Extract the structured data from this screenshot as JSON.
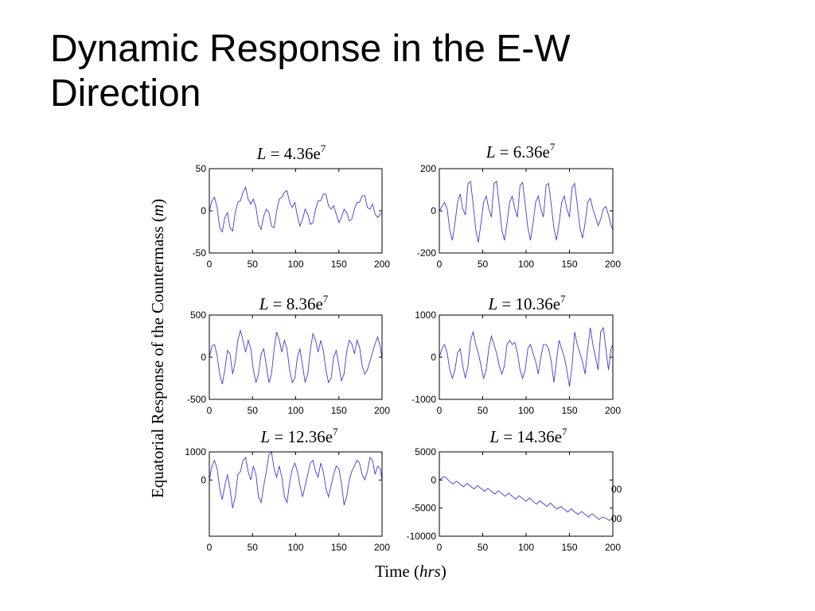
{
  "slide": {
    "title": "Dynamic Response in the E-W\nDirection"
  },
  "figure": {
    "ylabel_plain": "Equatorial  Response of the Countermass (",
    "ylabel_italic": "m",
    "ylabel_close": ")",
    "xlabel_plain": "Time (",
    "xlabel_italic": "hrs",
    "xlabel_close": ")",
    "line_color": "#3b3bd8",
    "stray_tick_labels": [
      "00",
      "00"
    ]
  },
  "chart_data": [
    {
      "type": "line",
      "title_var": "L",
      "title_rest": " = 4.36e",
      "title_sup": "7",
      "xlim": [
        0,
        200
      ],
      "ylim": [
        -50,
        50
      ],
      "xticks": [
        "0",
        "50",
        "100",
        "150",
        "200"
      ],
      "yticks": [
        {
          "v": 50,
          "label": "50"
        },
        {
          "v": 0,
          "label": "0"
        },
        {
          "v": -50,
          "label": "-50"
        }
      ],
      "x": [
        0,
        3,
        6,
        9,
        12,
        15,
        18,
        21,
        24,
        27,
        30,
        33,
        36,
        39,
        42,
        45,
        48,
        51,
        54,
        57,
        60,
        63,
        66,
        69,
        72,
        75,
        78,
        81,
        84,
        87,
        90,
        93,
        96,
        99,
        102,
        105,
        108,
        111,
        114,
        117,
        120,
        123,
        126,
        129,
        132,
        135,
        138,
        141,
        144,
        147,
        150,
        153,
        156,
        159,
        162,
        165,
        168,
        171,
        174,
        177,
        180,
        183,
        186,
        189,
        192,
        195,
        198,
        200
      ],
      "y": [
        0,
        12,
        16,
        4,
        -20,
        -25,
        -8,
        -2,
        -20,
        -24,
        -2,
        10,
        12,
        22,
        28,
        14,
        8,
        14,
        4,
        -16,
        -22,
        -6,
        2,
        -2,
        -18,
        -20,
        0,
        14,
        16,
        22,
        24,
        10,
        4,
        10,
        -6,
        -18,
        -10,
        2,
        -4,
        -16,
        -14,
        2,
        12,
        12,
        20,
        20,
        6,
        2,
        6,
        -4,
        -14,
        -8,
        2,
        -2,
        -12,
        -10,
        2,
        10,
        10,
        18,
        18,
        4,
        2,
        8,
        -4,
        -8,
        -4,
        -2
      ]
    },
    {
      "type": "line",
      "title_var": "L",
      "title_rest": " = 6.36e",
      "title_sup": "7",
      "xlim": [
        0,
        200
      ],
      "ylim": [
        -200,
        200
      ],
      "xticks": [
        "0",
        "50",
        "100",
        "150",
        "200"
      ],
      "yticks": [
        {
          "v": 200,
          "label": "200"
        },
        {
          "v": 0,
          "label": "0"
        },
        {
          "v": -200,
          "label": "-200"
        }
      ],
      "x": [
        0,
        3,
        6,
        9,
        12,
        15,
        18,
        21,
        24,
        27,
        30,
        33,
        36,
        39,
        42,
        45,
        48,
        51,
        54,
        57,
        60,
        63,
        66,
        69,
        72,
        75,
        78,
        81,
        84,
        87,
        90,
        93,
        96,
        99,
        102,
        105,
        108,
        111,
        114,
        117,
        120,
        123,
        126,
        129,
        132,
        135,
        138,
        141,
        144,
        147,
        150,
        153,
        156,
        159,
        162,
        165,
        168,
        171,
        174,
        177,
        180,
        183,
        186,
        189,
        192,
        195,
        198,
        200
      ],
      "y": [
        0,
        20,
        40,
        10,
        -90,
        -140,
        -60,
        40,
        80,
        10,
        -20,
        130,
        140,
        30,
        -90,
        -150,
        -60,
        40,
        70,
        10,
        -30,
        130,
        140,
        30,
        -90,
        -140,
        -60,
        40,
        70,
        10,
        -30,
        120,
        135,
        30,
        -80,
        -140,
        -60,
        40,
        70,
        10,
        -30,
        120,
        130,
        30,
        -80,
        -140,
        -60,
        40,
        70,
        10,
        -30,
        110,
        130,
        30,
        -80,
        -130,
        -60,
        40,
        60,
        10,
        -30,
        -70,
        -40,
        10,
        20,
        -20,
        -70,
        -90
      ]
    },
    {
      "type": "line",
      "title_var": "L",
      "title_rest": " = 8.36e",
      "title_sup": "7",
      "xlim": [
        0,
        200
      ],
      "ylim": [
        -500,
        500
      ],
      "xticks": [
        "0",
        "50",
        "100",
        "150",
        "200"
      ],
      "yticks": [
        {
          "v": 500,
          "label": "500"
        },
        {
          "v": 0,
          "label": "0"
        },
        {
          "v": -500,
          "label": "-500"
        }
      ],
      "x": [
        0,
        3,
        6,
        9,
        12,
        15,
        18,
        21,
        24,
        27,
        30,
        33,
        36,
        39,
        42,
        45,
        48,
        51,
        54,
        57,
        60,
        63,
        66,
        69,
        72,
        75,
        78,
        81,
        84,
        87,
        90,
        93,
        96,
        99,
        102,
        105,
        108,
        111,
        114,
        117,
        120,
        123,
        126,
        129,
        132,
        135,
        138,
        141,
        144,
        147,
        150,
        153,
        156,
        159,
        162,
        165,
        168,
        171,
        174,
        177,
        180,
        183,
        186,
        189,
        192,
        195,
        198,
        200
      ],
      "y": [
        0,
        130,
        150,
        20,
        -200,
        -320,
        -150,
        80,
        40,
        -200,
        -50,
        200,
        320,
        200,
        60,
        200,
        100,
        -150,
        -300,
        -200,
        40,
        100,
        -100,
        -300,
        -200,
        100,
        300,
        200,
        60,
        200,
        100,
        -150,
        -300,
        -250,
        0,
        100,
        -100,
        -300,
        -200,
        80,
        280,
        200,
        60,
        200,
        80,
        -150,
        -300,
        -250,
        0,
        80,
        -100,
        -280,
        -200,
        60,
        200,
        160,
        40,
        200,
        120,
        -100,
        -200,
        -150,
        -50,
        60,
        160,
        240,
        120,
        -20
      ]
    },
    {
      "type": "line",
      "title_var": "L",
      "title_rest": " = 10.36e",
      "title_sup": "7",
      "xlim": [
        0,
        200
      ],
      "ylim": [
        -1000,
        1000
      ],
      "xticks": [
        "0",
        "50",
        "100",
        "150",
        "200"
      ],
      "yticks": [
        {
          "v": 1000,
          "label": "1000"
        },
        {
          "v": 0,
          "label": "0"
        },
        {
          "v": -1000,
          "label": "-1000"
        }
      ],
      "x": [
        0,
        3,
        6,
        9,
        12,
        15,
        18,
        21,
        24,
        27,
        30,
        33,
        36,
        39,
        42,
        45,
        48,
        51,
        54,
        57,
        60,
        63,
        66,
        69,
        72,
        75,
        78,
        81,
        84,
        87,
        90,
        93,
        96,
        99,
        102,
        105,
        108,
        111,
        114,
        117,
        120,
        123,
        126,
        129,
        132,
        135,
        138,
        141,
        144,
        147,
        150,
        153,
        156,
        159,
        162,
        165,
        168,
        171,
        174,
        177,
        180,
        183,
        186,
        189,
        192,
        195,
        198,
        200
      ],
      "y": [
        0,
        200,
        300,
        100,
        -300,
        -500,
        -300,
        100,
        200,
        -200,
        -500,
        -200,
        400,
        600,
        300,
        100,
        -200,
        -500,
        -300,
        200,
        500,
        300,
        100,
        -200,
        -400,
        -200,
        300,
        400,
        300,
        350,
        100,
        -300,
        -500,
        -300,
        200,
        300,
        100,
        -100,
        -400,
        0,
        300,
        300,
        200,
        -100,
        -600,
        -100,
        400,
        200,
        0,
        -300,
        -700,
        -200,
        600,
        300,
        100,
        -100,
        -400,
        200,
        700,
        300,
        0,
        -300,
        600,
        700,
        200,
        -300,
        200,
        300
      ]
    },
    {
      "type": "line",
      "title_var": "L",
      "title_rest": " = 12.36e",
      "title_sup": "7",
      "xlim": [
        0,
        200
      ],
      "ylim": [
        -2000,
        1000
      ],
      "xticks": [
        "0",
        "50",
        "100",
        "150",
        "200"
      ],
      "yticks": [
        {
          "v": 1000,
          "label": "1000"
        },
        {
          "v": 0,
          "label": "0"
        }
      ],
      "x": [
        0,
        3,
        6,
        9,
        12,
        15,
        18,
        21,
        24,
        27,
        30,
        33,
        36,
        39,
        42,
        45,
        48,
        51,
        54,
        57,
        60,
        63,
        66,
        69,
        72,
        75,
        78,
        81,
        84,
        87,
        90,
        93,
        96,
        99,
        102,
        105,
        108,
        111,
        114,
        117,
        120,
        123,
        126,
        129,
        132,
        135,
        138,
        141,
        144,
        147,
        150,
        153,
        156,
        159,
        162,
        165,
        168,
        171,
        174,
        177,
        180,
        183,
        186,
        189,
        192,
        195,
        198,
        200
      ],
      "y": [
        0,
        500,
        700,
        400,
        -300,
        -700,
        -200,
        200,
        -300,
        -1000,
        -600,
        200,
        300,
        700,
        800,
        300,
        0,
        500,
        200,
        -600,
        -800,
        -200,
        300,
        900,
        1000,
        400,
        100,
        500,
        100,
        -600,
        -800,
        -100,
        400,
        600,
        300,
        -200,
        -600,
        -200,
        200,
        600,
        700,
        300,
        100,
        600,
        300,
        -300,
        -600,
        -200,
        200,
        500,
        400,
        -100,
        -900,
        -600,
        0,
        300,
        500,
        700,
        600,
        200,
        0,
        300,
        800,
        700,
        200,
        500,
        400,
        0
      ]
    },
    {
      "type": "line",
      "title_var": "L",
      "title_rest": " = 14.36e",
      "title_sup": "7",
      "xlim": [
        0,
        200
      ],
      "ylim": [
        -10000,
        5000
      ],
      "xticks": [
        "0",
        "50",
        "100",
        "150",
        "200"
      ],
      "yticks": [
        {
          "v": 5000,
          "label": "5000"
        },
        {
          "v": 0,
          "label": "0"
        },
        {
          "v": -5000,
          "label": "-5000"
        },
        {
          "v": -10000,
          "label": "-10000"
        }
      ],
      "x": [
        0,
        5,
        8,
        12,
        16,
        20,
        24,
        28,
        32,
        36,
        40,
        44,
        48,
        52,
        56,
        60,
        64,
        68,
        72,
        76,
        80,
        84,
        88,
        92,
        96,
        100,
        104,
        108,
        112,
        116,
        120,
        124,
        128,
        132,
        136,
        140,
        144,
        148,
        152,
        156,
        160,
        164,
        168,
        172,
        176,
        180,
        184,
        188,
        192,
        196,
        200
      ],
      "y": [
        0,
        600,
        400,
        -300,
        -700,
        -200,
        -800,
        -1200,
        -600,
        -1100,
        -1600,
        -1000,
        -1500,
        -2000,
        -1500,
        -2000,
        -2500,
        -1900,
        -2400,
        -2900,
        -2300,
        -2900,
        -3400,
        -2800,
        -3300,
        -3800,
        -3200,
        -3800,
        -4300,
        -3700,
        -4200,
        -4700,
        -4100,
        -4700,
        -5200,
        -4700,
        -5200,
        -5700,
        -5100,
        -5700,
        -6100,
        -5600,
        -6100,
        -6600,
        -6000,
        -6500,
        -7000,
        -6600,
        -6800,
        -7200,
        -6800
      ]
    }
  ]
}
